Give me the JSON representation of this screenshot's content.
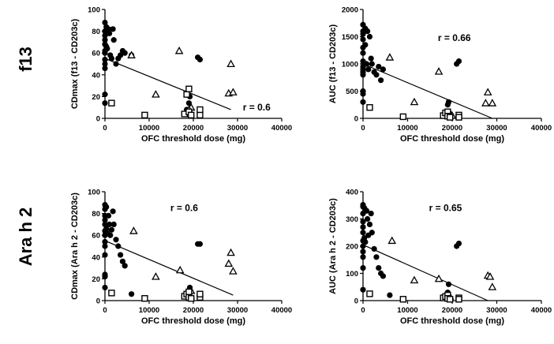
{
  "figure": {
    "row_labels": [
      "f13",
      "Ara h 2"
    ]
  },
  "chart_data": [
    {
      "type": "scatter",
      "title": "",
      "xlabel": "OFC threshold dose (mg)",
      "ylabel": "CDmax (f13 - CD203c)",
      "xlim": [
        0,
        40000
      ],
      "ylim": [
        0,
        100
      ],
      "xticks": [
        0,
        10000,
        20000,
        30000,
        40000
      ],
      "yticks": [
        0,
        20,
        40,
        60,
        80,
        100
      ],
      "annotation": "r = 0.6",
      "grid": false,
      "legend": "none",
      "series": [
        {
          "marker": "circle",
          "points": [
            [
              0,
              88
            ],
            [
              0,
              80
            ],
            [
              0,
              76
            ],
            [
              0,
              72
            ],
            [
              0,
              68
            ],
            [
              0,
              62
            ],
            [
              0,
              60
            ],
            [
              0,
              54
            ],
            [
              0,
              50
            ],
            [
              0,
              46
            ],
            [
              0,
              22
            ],
            [
              0,
              14
            ],
            [
              300,
              84
            ],
            [
              300,
              66
            ],
            [
              500,
              64
            ],
            [
              800,
              82
            ],
            [
              1000,
              78
            ],
            [
              1200,
              58
            ],
            [
              1500,
              55
            ],
            [
              1800,
              82
            ],
            [
              2000,
              72
            ],
            [
              2500,
              50
            ],
            [
              3000,
              55
            ],
            [
              3500,
              58
            ],
            [
              4000,
              62
            ],
            [
              4500,
              60
            ],
            [
              6000,
              58
            ],
            [
              18500,
              8
            ],
            [
              18800,
              4
            ],
            [
              19000,
              14
            ],
            [
              19200,
              20
            ],
            [
              21000,
              56
            ],
            [
              21500,
              54
            ]
          ]
        },
        {
          "marker": "triangle",
          "points": [
            [
              6000,
              58
            ],
            [
              16800,
              62
            ],
            [
              19500,
              10
            ],
            [
              11500,
              22
            ],
            [
              28500,
              50
            ],
            [
              28000,
              23
            ],
            [
              29000,
              24
            ],
            [
              19000,
              8
            ]
          ]
        },
        {
          "marker": "square",
          "points": [
            [
              1500,
              14
            ],
            [
              9000,
              3
            ],
            [
              18000,
              4
            ],
            [
              18500,
              22
            ],
            [
              19000,
              27
            ],
            [
              19000,
              6
            ],
            [
              19500,
              3
            ],
            [
              21500,
              3
            ],
            [
              21500,
              8
            ]
          ]
        }
      ],
      "trendline": [
        [
          0,
          55
        ],
        [
          28500,
          8
        ]
      ]
    },
    {
      "type": "scatter",
      "title": "",
      "xlabel": "OFC threshold dose (mg)",
      "ylabel": "AUC (f13 - CD203c)",
      "xlim": [
        0,
        40000
      ],
      "ylim": [
        0,
        2000
      ],
      "xticks": [
        0,
        10000,
        20000,
        30000,
        40000
      ],
      "yticks": [
        0,
        500,
        1000,
        1500,
        2000
      ],
      "annotation": "r = 0.66",
      "grid": false,
      "legend": "none",
      "series": [
        {
          "marker": "circle",
          "points": [
            [
              0,
              1720
            ],
            [
              0,
              1600
            ],
            [
              0,
              1550
            ],
            [
              0,
              1450
            ],
            [
              0,
              1300
            ],
            [
              0,
              1200
            ],
            [
              0,
              1050
            ],
            [
              0,
              950
            ],
            [
              0,
              900
            ],
            [
              0,
              850
            ],
            [
              0,
              800
            ],
            [
              0,
              500
            ],
            [
              0,
              300
            ],
            [
              0,
              450
            ],
            [
              500,
              1650
            ],
            [
              500,
              1350
            ],
            [
              800,
              1000
            ],
            [
              1000,
              1600
            ],
            [
              1200,
              900
            ],
            [
              1500,
              1500
            ],
            [
              1800,
              1100
            ],
            [
              2000,
              1000
            ],
            [
              2500,
              850
            ],
            [
              3000,
              800
            ],
            [
              3500,
              950
            ],
            [
              4000,
              700
            ],
            [
              4500,
              900
            ],
            [
              18500,
              80
            ],
            [
              18800,
              50
            ],
            [
              19000,
              250
            ],
            [
              19200,
              300
            ],
            [
              21000,
              1000
            ],
            [
              21500,
              1050
            ]
          ]
        },
        {
          "marker": "triangle",
          "points": [
            [
              6000,
              1120
            ],
            [
              17000,
              860
            ],
            [
              11500,
              300
            ],
            [
              19500,
              100
            ],
            [
              28000,
              480
            ],
            [
              27500,
              280
            ],
            [
              29000,
              280
            ],
            [
              20000,
              50
            ]
          ]
        },
        {
          "marker": "square",
          "points": [
            [
              1500,
              200
            ],
            [
              9000,
              30
            ],
            [
              18000,
              50
            ],
            [
              18500,
              100
            ],
            [
              19000,
              120
            ],
            [
              19000,
              40
            ],
            [
              19500,
              20
            ],
            [
              21500,
              60
            ],
            [
              21500,
              20
            ]
          ]
        }
      ],
      "trendline": [
        [
          0,
          1000
        ],
        [
          29000,
          0
        ]
      ]
    },
    {
      "type": "scatter",
      "title": "",
      "xlabel": "OFC threshold dose (mg)",
      "ylabel": "CDmax (Ara h 2 - CD203c)",
      "xlim": [
        0,
        40000
      ],
      "ylim": [
        0,
        100
      ],
      "xticks": [
        0,
        10000,
        20000,
        30000,
        40000
      ],
      "yticks": [
        0,
        20,
        40,
        60,
        80,
        100
      ],
      "annotation": "r = 0.6",
      "grid": false,
      "legend": "none",
      "series": [
        {
          "marker": "circle",
          "points": [
            [
              0,
              88
            ],
            [
              0,
              84
            ],
            [
              0,
              78
            ],
            [
              0,
              74
            ],
            [
              0,
              70
            ],
            [
              0,
              64
            ],
            [
              0,
              60
            ],
            [
              0,
              54
            ],
            [
              0,
              50
            ],
            [
              0,
              42
            ],
            [
              0,
              24
            ],
            [
              0,
              22
            ],
            [
              0,
              12
            ],
            [
              300,
              86
            ],
            [
              300,
              66
            ],
            [
              500,
              62
            ],
            [
              800,
              78
            ],
            [
              1000,
              70
            ],
            [
              1200,
              60
            ],
            [
              1500,
              65
            ],
            [
              1800,
              82
            ],
            [
              2000,
              70
            ],
            [
              2500,
              56
            ],
            [
              3000,
              50
            ],
            [
              3500,
              42
            ],
            [
              4000,
              36
            ],
            [
              4500,
              32
            ],
            [
              6000,
              6
            ],
            [
              18500,
              6
            ],
            [
              18800,
              4
            ],
            [
              19000,
              7
            ],
            [
              19200,
              12
            ],
            [
              21000,
              52
            ],
            [
              21500,
              52
            ]
          ]
        },
        {
          "marker": "triangle",
          "points": [
            [
              6500,
              64
            ],
            [
              11500,
              22
            ],
            [
              17000,
              28
            ],
            [
              19500,
              9
            ],
            [
              28500,
              44
            ],
            [
              28000,
              34
            ],
            [
              29000,
              27
            ]
          ]
        },
        {
          "marker": "square",
          "points": [
            [
              1500,
              7
            ],
            [
              9000,
              2
            ],
            [
              18000,
              4
            ],
            [
              18500,
              6
            ],
            [
              19000,
              8
            ],
            [
              19000,
              3
            ],
            [
              19500,
              2
            ],
            [
              21500,
              3
            ],
            [
              21500,
              6
            ]
          ]
        }
      ],
      "trendline": [
        [
          0,
          55
        ],
        [
          29000,
          5
        ]
      ]
    },
    {
      "type": "scatter",
      "title": "",
      "xlabel": "OFC threshold dose (mg)",
      "ylabel": "AUC (Ara h 2 - CD203c)",
      "xlim": [
        0,
        40000
      ],
      "ylim": [
        0,
        400
      ],
      "xticks": [
        0,
        10000,
        20000,
        30000,
        40000
      ],
      "yticks": [
        0,
        100,
        200,
        300,
        400
      ],
      "annotation": "r = 0.65",
      "grid": false,
      "legend": "none",
      "series": [
        {
          "marker": "circle",
          "points": [
            [
              0,
              352
            ],
            [
              0,
              345
            ],
            [
              0,
              320
            ],
            [
              0,
              290
            ],
            [
              0,
              270
            ],
            [
              0,
              250
            ],
            [
              0,
              220
            ],
            [
              0,
              200
            ],
            [
              0,
              180
            ],
            [
              0,
              160
            ],
            [
              0,
              120
            ],
            [
              0,
              40
            ],
            [
              300,
              340
            ],
            [
              300,
              230
            ],
            [
              500,
              215
            ],
            [
              800,
              330
            ],
            [
              1000,
              300
            ],
            [
              1200,
              240
            ],
            [
              1500,
              280
            ],
            [
              1800,
              320
            ],
            [
              2000,
              250
            ],
            [
              2500,
              190
            ],
            [
              3000,
              160
            ],
            [
              3500,
              120
            ],
            [
              4000,
              100
            ],
            [
              4500,
              90
            ],
            [
              6000,
              20
            ],
            [
              18500,
              10
            ],
            [
              18800,
              20
            ],
            [
              19000,
              30
            ],
            [
              19200,
              60
            ],
            [
              21000,
              200
            ],
            [
              21500,
              210
            ]
          ]
        },
        {
          "marker": "triangle",
          "points": [
            [
              6500,
              220
            ],
            [
              11500,
              75
            ],
            [
              17000,
              80
            ],
            [
              19500,
              15
            ],
            [
              28000,
              92
            ],
            [
              28500,
              88
            ],
            [
              29000,
              50
            ]
          ]
        },
        {
          "marker": "square",
          "points": [
            [
              1500,
              25
            ],
            [
              9000,
              5
            ],
            [
              18000,
              10
            ],
            [
              18500,
              15
            ],
            [
              19000,
              20
            ],
            [
              19000,
              8
            ],
            [
              19500,
              5
            ],
            [
              21500,
              10
            ],
            [
              21500,
              5
            ]
          ]
        }
      ],
      "trendline": [
        [
          0,
          205
        ],
        [
          28000,
          0
        ]
      ]
    }
  ]
}
